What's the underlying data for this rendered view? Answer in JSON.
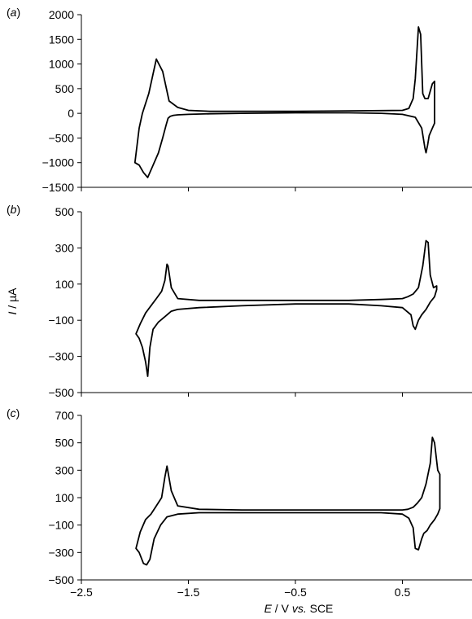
{
  "chart_data": {
    "type": "line",
    "xlabel_parts": [
      "E",
      " / V ",
      "vs.",
      " SCE"
    ],
    "ylabel_parts": [
      "I",
      " / µA"
    ],
    "x_ticks": [
      -2.5,
      -1.5,
      -0.5,
      0.5
    ],
    "x_tick_labels": [
      "−2.5",
      "−1.5",
      "−0.5",
      "0.5"
    ],
    "xlim": [
      -2.5,
      1.15
    ],
    "panels": [
      {
        "label": "(a)",
        "label_letter": "a",
        "ylim": [
          -1500,
          2000
        ],
        "y_ticks": [
          -1500,
          -1000,
          -500,
          0,
          500,
          1000,
          1500,
          2000
        ],
        "y_tick_labels": [
          "−1500",
          "−1000",
          "−500",
          "0",
          "500",
          "1000",
          "1500",
          "2000"
        ],
        "series": [
          {
            "x": [
              -2.0,
              -1.96,
              -1.92,
              -1.88,
              -1.84,
              -1.78,
              -1.74,
              -1.71,
              -1.69,
              -1.67,
              -1.64,
              -1.6,
              -1.5,
              -1.3,
              -1.0,
              -0.5,
              0.0,
              0.3,
              0.5,
              0.62,
              0.68,
              0.71,
              0.72,
              0.735,
              0.75,
              0.77,
              0.8,
              0.8,
              0.78,
              0.76,
              0.74,
              0.71,
              0.69,
              0.67,
              0.65,
              0.62,
              0.6,
              0.56,
              0.5,
              0.3,
              0.0,
              -0.5,
              -1.0,
              -1.3,
              -1.5,
              -1.6,
              -1.68,
              -1.74,
              -1.8,
              -1.84,
              -1.87,
              -1.9,
              -1.93,
              -1.96,
              -2.0
            ],
            "y": [
              -1000,
              -1050,
              -1200,
              -1300,
              -1100,
              -800,
              -500,
              -250,
              -100,
              -60,
              -40,
              -30,
              -20,
              -10,
              0,
              10,
              10,
              0,
              -20,
              -80,
              -300,
              -700,
              -800,
              -650,
              -450,
              -350,
              -200,
              650,
              600,
              450,
              300,
              300,
              400,
              1600,
              1750,
              700,
              300,
              100,
              60,
              55,
              50,
              40,
              40,
              40,
              60,
              120,
              250,
              850,
              1100,
              700,
              400,
              200,
              0,
              -300,
              -1000
            ]
          }
        ]
      },
      {
        "label": "(b)",
        "label_letter": "b",
        "ylim": [
          -500,
          500
        ],
        "y_ticks": [
          -500,
          -300,
          -100,
          100,
          300,
          500
        ],
        "y_tick_labels": [
          "−500",
          "−300",
          "−100",
          "100",
          "300",
          "500"
        ],
        "series": [
          {
            "x": [
              -1.99,
              -1.96,
              -1.93,
              -1.9,
              -1.88,
              -1.86,
              -1.83,
              -1.78,
              -1.72,
              -1.66,
              -1.6,
              -1.4,
              -1.0,
              -0.5,
              0.0,
              0.3,
              0.5,
              0.58,
              0.6,
              0.62,
              0.65,
              0.68,
              0.72,
              0.76,
              0.8,
              0.82,
              0.82,
              0.79,
              0.76,
              0.74,
              0.72,
              0.69,
              0.65,
              0.6,
              0.55,
              0.5,
              0.3,
              0.0,
              -0.5,
              -1.0,
              -1.4,
              -1.6,
              -1.66,
              -1.69,
              -1.7,
              -1.72,
              -1.75,
              -1.8,
              -1.85,
              -1.9,
              -1.95,
              -1.99
            ],
            "y": [
              -175,
              -200,
              -250,
              -330,
              -410,
              -250,
              -150,
              -110,
              -80,
              -50,
              -40,
              -30,
              -20,
              -10,
              -10,
              -20,
              -30,
              -70,
              -130,
              -150,
              -100,
              -70,
              -40,
              0,
              30,
              70,
              90,
              80,
              150,
              330,
              340,
              200,
              80,
              45,
              30,
              20,
              15,
              10,
              10,
              10,
              10,
              20,
              80,
              200,
              210,
              120,
              60,
              20,
              -20,
              -60,
              -120,
              -175
            ]
          }
        ]
      },
      {
        "label": "(c)",
        "label_letter": "c",
        "ylim": [
          -500,
          700
        ],
        "y_ticks": [
          -500,
          -300,
          -100,
          100,
          300,
          500,
          700
        ],
        "y_tick_labels": [
          "−500",
          "−300",
          "−100",
          "100",
          "300",
          "500",
          "700"
        ],
        "series": [
          {
            "x": [
              -1.99,
              -1.96,
              -1.92,
              -1.89,
              -1.86,
              -1.82,
              -1.76,
              -1.7,
              -1.6,
              -1.4,
              -1.0,
              -0.5,
              0.0,
              0.3,
              0.5,
              0.56,
              0.6,
              0.62,
              0.65,
              0.68,
              0.7,
              0.73,
              0.76,
              0.8,
              0.83,
              0.85,
              0.85,
              0.83,
              0.8,
              0.78,
              0.76,
              0.72,
              0.68,
              0.64,
              0.6,
              0.55,
              0.5,
              0.3,
              0.0,
              -0.5,
              -1.0,
              -1.4,
              -1.6,
              -1.66,
              -1.7,
              -1.72,
              -1.75,
              -1.8,
              -1.85,
              -1.9,
              -1.95,
              -1.99
            ],
            "y": [
              -270,
              -300,
              -380,
              -390,
              -350,
              -200,
              -100,
              -40,
              -20,
              -10,
              -10,
              -10,
              -10,
              -10,
              -20,
              -50,
              -120,
              -270,
              -280,
              -200,
              -160,
              -140,
              -100,
              -60,
              -20,
              20,
              270,
              300,
              500,
              540,
              350,
              200,
              100,
              60,
              30,
              15,
              10,
              10,
              10,
              10,
              10,
              15,
              40,
              150,
              330,
              250,
              100,
              40,
              -20,
              -60,
              -150,
              -270
            ]
          }
        ]
      }
    ]
  }
}
